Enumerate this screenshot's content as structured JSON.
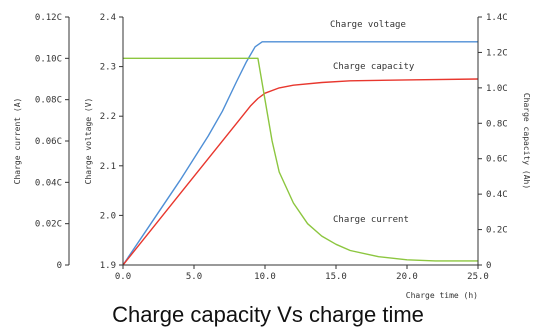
{
  "caption": "Charge capacity Vs charge time",
  "chart_data": {
    "type": "line",
    "title": "Charge capacity Vs charge time",
    "xlabel": "Charge time (h)",
    "xlim": [
      0,
      25
    ],
    "xticks": [
      "0.0",
      "5.0",
      "10.0",
      "15.0",
      "20.0",
      "25.0"
    ],
    "axes": {
      "current": {
        "label": "Charge current (A)",
        "range": [
          0,
          0.12
        ],
        "ticks": [
          "0",
          "0.02C",
          "0.04C",
          "0.06C",
          "0.08C",
          "0.10C",
          "0.12C"
        ]
      },
      "voltage": {
        "label": "Charge voltage (V)",
        "range": [
          1.9,
          2.4
        ],
        "ticks": [
          "1.9",
          "2.0",
          "2.1",
          "2.2",
          "2.3",
          "2.4"
        ]
      },
      "capacity": {
        "label": "Charge capacity (Ah)",
        "range": [
          0,
          1.4
        ],
        "ticks": [
          "0",
          "0.2C",
          "0.4C",
          "0.6C",
          "0.8C",
          "1.0C",
          "1.2C",
          "1.4C"
        ]
      }
    },
    "series": [
      {
        "name": "Charge voltage",
        "axis": "voltage",
        "color": "#4f8fd6",
        "points": [
          [
            0,
            1.9
          ],
          [
            2,
            1.985
          ],
          [
            4,
            2.07
          ],
          [
            6,
            2.16
          ],
          [
            7,
            2.21
          ],
          [
            8,
            2.27
          ],
          [
            8.7,
            2.31
          ],
          [
            9.3,
            2.34
          ],
          [
            9.8,
            2.35
          ],
          [
            12,
            2.35
          ],
          [
            16,
            2.35
          ],
          [
            20,
            2.35
          ],
          [
            25,
            2.35
          ]
        ]
      },
      {
        "name": "Charge capacity",
        "axis": "capacity",
        "color": "#e8372e",
        "points": [
          [
            0,
            0
          ],
          [
            2,
            0.2
          ],
          [
            4,
            0.4
          ],
          [
            6,
            0.6
          ],
          [
            8,
            0.8
          ],
          [
            9,
            0.9
          ],
          [
            9.5,
            0.94
          ],
          [
            10,
            0.97
          ],
          [
            11,
            1.0
          ],
          [
            12,
            1.015
          ],
          [
            14,
            1.03
          ],
          [
            16,
            1.04
          ],
          [
            20,
            1.045
          ],
          [
            25,
            1.05
          ]
        ]
      },
      {
        "name": "Charge current",
        "axis": "current",
        "color": "#8cc63f",
        "points": [
          [
            0,
            0.1
          ],
          [
            9.5,
            0.1
          ],
          [
            10,
            0.08
          ],
          [
            10.5,
            0.06
          ],
          [
            11,
            0.045
          ],
          [
            12,
            0.03
          ],
          [
            13,
            0.02
          ],
          [
            14,
            0.014
          ],
          [
            15,
            0.01
          ],
          [
            16,
            0.007
          ],
          [
            18,
            0.004
          ],
          [
            20,
            0.0025
          ],
          [
            22,
            0.002
          ],
          [
            25,
            0.002
          ]
        ]
      }
    ]
  }
}
